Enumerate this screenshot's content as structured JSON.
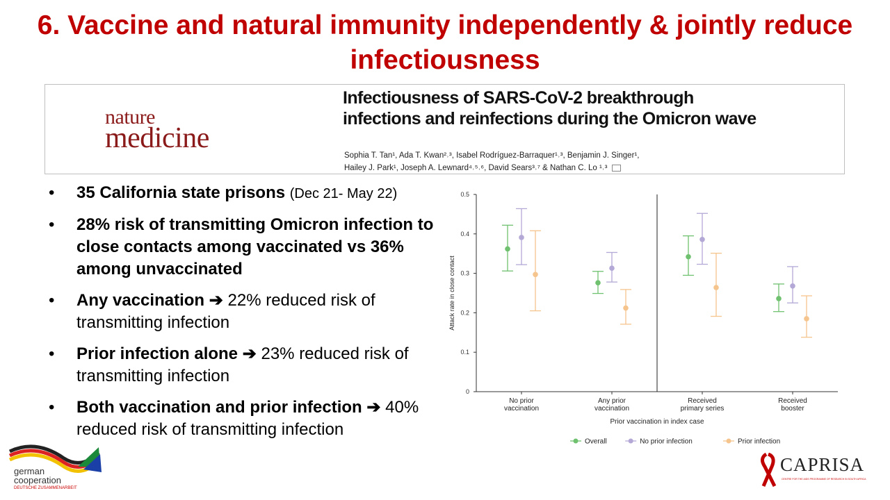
{
  "slide": {
    "title": "6. Vaccine and natural immunity independently & jointly reduce infectiousness"
  },
  "paper": {
    "journal_line1": "nature",
    "journal_line2": "medicine",
    "title": "Infectiousness of SARS-CoV-2 breakthrough infections and reinfections during the Omicron wave",
    "authors_line1": "Sophia T. Tan¹, Ada T. Kwan²˒³, Isabel Rodríguez-Barraquer¹˒³, Benjamin J. Singer¹,",
    "authors_line2": "Hailey J. Park¹, Joseph A. Lewnard⁴˒⁵˒⁶, David Sears³˒⁷ & Nathan C. Lo ¹˒³"
  },
  "bullets": [
    {
      "bold": "35 California state prisons",
      "arrow": "",
      "rest": "(Dec 21- May 22)"
    },
    {
      "bold": "28% risk of transmitting Omicron infection to close contacts among vaccinated vs 36% among unvaccinated",
      "arrow": "",
      "rest": ""
    },
    {
      "bold": "Any vaccination",
      "arrow": "➔",
      "rest": "22% reduced risk of transmitting infection"
    },
    {
      "bold": "Prior infection alone",
      "arrow": "➔",
      "rest": "23% reduced risk of transmitting infection"
    },
    {
      "bold": "Both vaccination and prior infection",
      "arrow": "➔",
      "rest": "40% reduced risk of transmitting infection"
    }
  ],
  "logos": {
    "german_line1": "german",
    "german_line2": "cooperation",
    "german_line3": "DEUTSCHE ZUSAMMENARBEIT",
    "caprisa": "CAPRISA",
    "caprisa_sub": "CENTRE FOR THE AIDS PROGRAMME OF RESEARCH IN SOUTH AFRICA"
  },
  "chart_data": {
    "type": "scatter",
    "xlabel": "Prior vaccination in index case",
    "ylabel": "Attack rate in close contact",
    "ylim": [
      0,
      0.5
    ],
    "yticks": [
      "0",
      "0.1",
      "0.2",
      "0.3",
      "0.4",
      "0.5"
    ],
    "categories": [
      "No prior\nvaccination",
      "Any prior\nvaccination",
      "Received\nprimary series",
      "Received\nbooster"
    ],
    "divider_after_category": 2,
    "legend_position": "bottom",
    "series": [
      {
        "name": "Overall",
        "color": "#6fc170",
        "values": [
          0.362,
          0.276,
          0.342,
          0.236
        ],
        "lower": [
          0.306,
          0.249,
          0.295,
          0.203
        ],
        "upper": [
          0.422,
          0.305,
          0.395,
          0.273
        ]
      },
      {
        "name": "No prior infection",
        "color": "#b3a8d6",
        "values": [
          0.391,
          0.313,
          0.386,
          0.268
        ],
        "lower": [
          0.322,
          0.278,
          0.323,
          0.225
        ],
        "upper": [
          0.464,
          0.353,
          0.452,
          0.317
        ]
      },
      {
        "name": "Prior infection",
        "color": "#f6c48d",
        "values": [
          0.297,
          0.212,
          0.264,
          0.185
        ],
        "lower": [
          0.205,
          0.171,
          0.191,
          0.138
        ],
        "upper": [
          0.408,
          0.259,
          0.351,
          0.243
        ]
      }
    ]
  }
}
